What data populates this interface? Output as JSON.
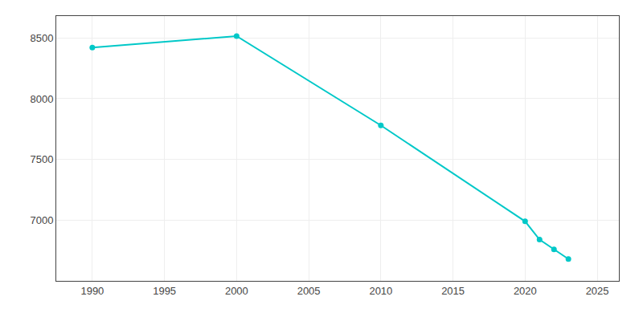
{
  "chart_data": {
    "type": "line",
    "x": [
      1990,
      2000,
      2010,
      2020,
      2021,
      2022,
      2023
    ],
    "values": [
      8420,
      8515,
      7780,
      6990,
      6840,
      6760,
      6680
    ],
    "color": "#00C8C8",
    "marker": "circle",
    "xlim": [
      1987.5,
      2026.5
    ],
    "xticks": [
      1990,
      1995,
      2000,
      2005,
      2010,
      2015,
      2020,
      2025
    ],
    "ylim": [
      6500,
      8680
    ],
    "yticks": [
      7000,
      7500,
      8000,
      8500
    ],
    "grid": true
  }
}
